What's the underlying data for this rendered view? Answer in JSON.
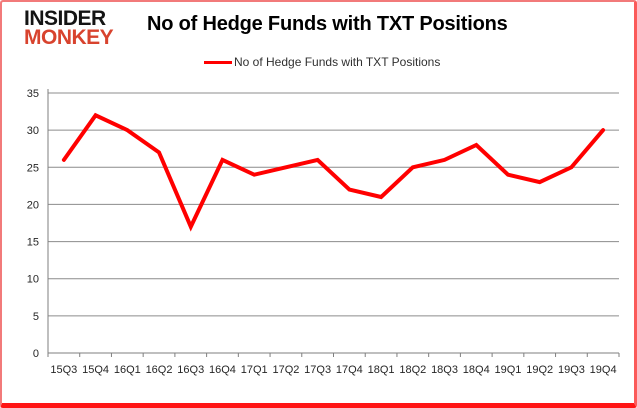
{
  "logo": {
    "line1": "INSIDER",
    "line2": "MONKEY",
    "line1_color": "#141414",
    "line2_color": "#d8432e"
  },
  "chart": {
    "title": "No of Hedge Funds with TXT Positions",
    "legend_label": "No of Hedge Funds with TXT Positions"
  },
  "chart_data": {
    "type": "line",
    "title": "No of Hedge Funds with TXT Positions",
    "legend": [
      "No of Hedge Funds with TXT Positions"
    ],
    "legend_position": "top",
    "categories": [
      "15Q3",
      "15Q4",
      "16Q1",
      "16Q2",
      "16Q3",
      "16Q4",
      "17Q1",
      "17Q2",
      "17Q3",
      "17Q4",
      "18Q1",
      "18Q2",
      "18Q3",
      "18Q4",
      "19Q1",
      "19Q2",
      "19Q3",
      "19Q4"
    ],
    "series": [
      {
        "name": "No of Hedge Funds with TXT Positions",
        "values": [
          26,
          32,
          30,
          27,
          17,
          26,
          24,
          25,
          26,
          22,
          21,
          25,
          26,
          28,
          24,
          23,
          25,
          30
        ]
      }
    ],
    "xlabel": "",
    "ylabel": "",
    "ylim": [
      0,
      35
    ],
    "ytick_step": 5,
    "grid": true,
    "line_color": "#ff0000",
    "gridline_color": "#8c8c8c",
    "axis_color": "#7f7f7f",
    "tick_label_color": "#262626"
  }
}
